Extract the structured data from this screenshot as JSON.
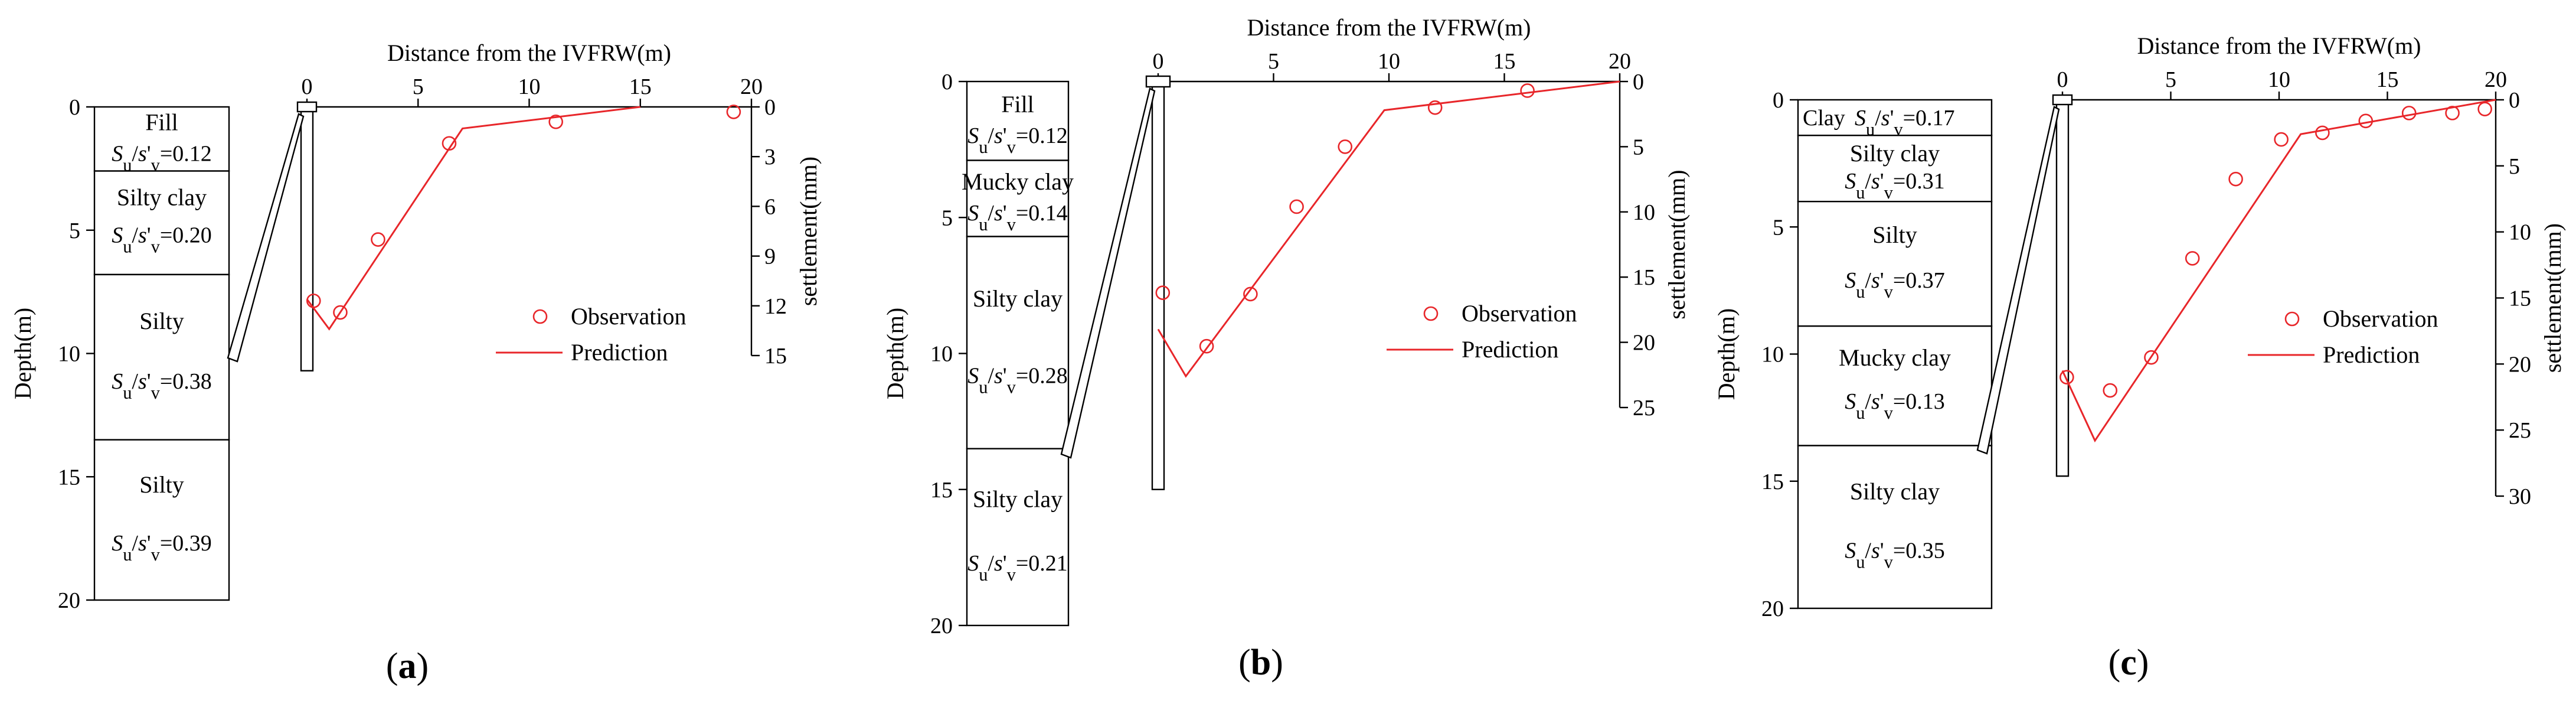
{
  "figure": {
    "colors": {
      "observation": "#e8262a",
      "prediction": "#e8262a",
      "axis": "#000000"
    }
  },
  "chart_data": [
    {
      "type": "line",
      "panel_label": "(a)",
      "soil_column": {
        "depth_label": "Depth(m)",
        "depth_ticks": [
          "0",
          "5",
          "10",
          "15",
          "20"
        ],
        "layers": [
          {
            "name": "Fill",
            "ratio_value": "=0.12",
            "top": 0,
            "bottom": 2.6,
            "style": "stack"
          },
          {
            "name": "Silty clay",
            "ratio_value": "=0.20",
            "top": 2.6,
            "bottom": 6.8,
            "style": "spread"
          },
          {
            "name": "Silty",
            "ratio_value": "=0.38",
            "top": 6.8,
            "bottom": 13.5,
            "style": "spread"
          },
          {
            "name": "Silty",
            "ratio_value": "=0.39",
            "top": 13.5,
            "bottom": 20,
            "style": "spread"
          }
        ],
        "ylim": [
          0,
          20
        ]
      },
      "settlement_plot": {
        "xlabel": "Distance from the IVFRW(m)",
        "ylabel": "settlement(mm)",
        "x_ticks": [
          "0",
          "5",
          "10",
          "15",
          "20"
        ],
        "y_ticks": [
          "0",
          "3",
          "6",
          "9",
          "12",
          "15"
        ],
        "xlim": [
          0,
          20
        ],
        "ylim": [
          0,
          15
        ],
        "wall_depth": 10.7,
        "legend": {
          "observation": "Observation",
          "prediction": "Prediction",
          "position": "right"
        },
        "series": [
          {
            "name": "Observation",
            "kind": "scatter",
            "x": [
              0.3,
              1.5,
              3.2,
              6.4,
              11.2,
              19.2
            ],
            "y": [
              11.7,
              12.4,
              8.0,
              2.2,
              0.9,
              0.3
            ]
          },
          {
            "name": "Prediction",
            "kind": "line",
            "x": [
              0,
              1.0,
              7.0,
              15.0
            ],
            "y": [
              11.6,
              13.4,
              1.3,
              0
            ]
          }
        ]
      }
    },
    {
      "type": "line",
      "panel_label": "(b)",
      "soil_column": {
        "depth_label": "Depth(m)",
        "depth_ticks": [
          "0",
          "5",
          "10",
          "15",
          "20"
        ],
        "layers": [
          {
            "name": "Fill",
            "ratio_value": "=0.12",
            "top": 0,
            "bottom": 2.9,
            "style": "stack"
          },
          {
            "name": "Mucky clay",
            "ratio_value": "=0.14",
            "top": 2.9,
            "bottom": 5.7,
            "style": "stack"
          },
          {
            "name": "Silty clay",
            "ratio_value": "=0.28",
            "top": 5.7,
            "bottom": 13.5,
            "style": "spread"
          },
          {
            "name": "Silty clay",
            "ratio_value": "=0.21",
            "top": 13.5,
            "bottom": 20,
            "style": "spread"
          }
        ],
        "ylim": [
          0,
          20
        ]
      },
      "settlement_plot": {
        "xlabel": "Distance from the IVFRW(m)",
        "ylabel": "settlement(mm)",
        "x_ticks": [
          "0",
          "5",
          "10",
          "15",
          "20"
        ],
        "y_ticks": [
          "0",
          "5",
          "10",
          "15",
          "20",
          "25"
        ],
        "xlim": [
          0,
          20
        ],
        "ylim": [
          0,
          25
        ],
        "wall_depth": 15,
        "legend": {
          "observation": "Observation",
          "prediction": "Prediction",
          "position": "right"
        },
        "series": [
          {
            "name": "Observation",
            "kind": "scatter",
            "x": [
              0.2,
              2.1,
              4.0,
              6.0,
              8.1,
              12.0,
              16.0
            ],
            "y": [
              16.2,
              20.3,
              16.3,
              9.6,
              5.0,
              2.0,
              0.7
            ]
          },
          {
            "name": "Prediction",
            "kind": "line",
            "x": [
              0,
              1.2,
              9.8,
              20.0
            ],
            "y": [
              19.0,
              22.6,
              2.2,
              0
            ]
          }
        ]
      }
    },
    {
      "type": "line",
      "panel_label": "(c)",
      "soil_column": {
        "depth_label": "Depth(m)",
        "depth_ticks": [
          "0",
          "5",
          "10",
          "15",
          "20"
        ],
        "layers": [
          {
            "name": "Clay",
            "ratio_value": "=0.17",
            "top": 0,
            "bottom": 1.4,
            "style": "inline"
          },
          {
            "name": "Silty clay",
            "ratio_value": "=0.31",
            "top": 1.4,
            "bottom": 4.0,
            "style": "stack"
          },
          {
            "name": "Silty",
            "ratio_value": "=0.37",
            "top": 4.0,
            "bottom": 8.9,
            "style": "spread"
          },
          {
            "name": "Mucky clay",
            "ratio_value": "=0.13",
            "top": 8.9,
            "bottom": 13.6,
            "style": "spread"
          },
          {
            "name": "Silty clay",
            "ratio_value": "=0.35",
            "top": 13.6,
            "bottom": 20,
            "style": "spread"
          }
        ],
        "ylim": [
          0,
          20
        ]
      },
      "settlement_plot": {
        "xlabel": "Distance from the IVFRW(m)",
        "ylabel": "settlement(mm)",
        "x_ticks": [
          "0",
          "5",
          "10",
          "15",
          "20"
        ],
        "y_ticks": [
          "0",
          "5",
          "10",
          "15",
          "20",
          "25",
          "30"
        ],
        "xlim": [
          0,
          20
        ],
        "ylim": [
          0,
          30
        ],
        "wall_depth": 14.8,
        "legend": {
          "observation": "Observation",
          "prediction": "Prediction",
          "position": "right"
        },
        "series": [
          {
            "name": "Observation",
            "kind": "scatter",
            "x": [
              0.2,
              2.2,
              4.1,
              6.0,
              8.0,
              10.1,
              12.0,
              14.0,
              16.0,
              18.0,
              19.5
            ],
            "y": [
              21.0,
              22.0,
              19.5,
              12.0,
              6.0,
              3.0,
              2.5,
              1.6,
              1.0,
              1.0,
              0.7
            ]
          },
          {
            "name": "Prediction",
            "kind": "line",
            "x": [
              0,
              1.5,
              11.0,
              20.0
            ],
            "y": [
              20.5,
              25.8,
              2.6,
              0
            ]
          }
        ]
      }
    }
  ]
}
